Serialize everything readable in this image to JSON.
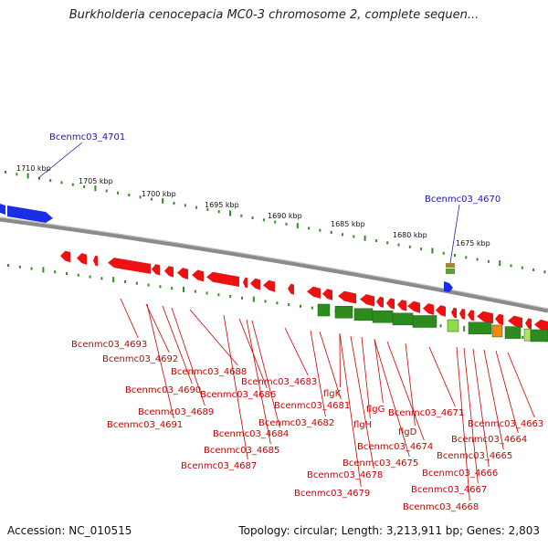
{
  "title": "Burkholderia cenocepacia MC0-3 chromosome 2, complete sequen...",
  "footer": {
    "accession": "Accession: NC_010515",
    "summary": "Topology: circular; Length: 3,213,911 bp; Genes: 2,803"
  },
  "colors": {
    "forward_gene": "#1a2ee6",
    "reverse_gene": "#ee1111",
    "backbone": "#888888",
    "tick_marks": "#2f8f1f",
    "cog_green": "#2e8b1e",
    "label_reverse": "#cc0000",
    "label_forward": "#1a1aa6"
  },
  "scale_ticks": [
    "1710 kbp",
    "1705 kbp",
    "1700 kbp",
    "1695 kbp",
    "1690 kbp",
    "1685 kbp",
    "1680 kbp",
    "1675 kbp"
  ],
  "forward_labels": [
    "Bcenmc03_4701",
    "Bcenmc03_4670"
  ],
  "reverse_labels": [
    "Bcenmc03_4693",
    "Bcenmc03_4692",
    "Bcenmc03_4688",
    "Bcenmc03_4690",
    "Bcenmc03_4686",
    "Bcenmc03_4683",
    "Bcenmc03_4689",
    "Bcenmc03_4691",
    "Bcenmc03_4684",
    "Bcenmc03_4681",
    "Bcenmc03_4682",
    "Bcenmc03_4685",
    "Bcenmc03_4687",
    "flgK",
    "flgG",
    "flgH",
    "Bcenmc03_4671",
    "flgD",
    "Bcenmc03_4674",
    "Bcenmc03_4675",
    "Bcenmc03_4678",
    "Bcenmc03_4679",
    "Bcenmc03_4663",
    "Bcenmc03_4664",
    "Bcenmc03_4665",
    "Bcenmc03_4666",
    "Bcenmc03_4667",
    "Bcenmc03_4668"
  ]
}
